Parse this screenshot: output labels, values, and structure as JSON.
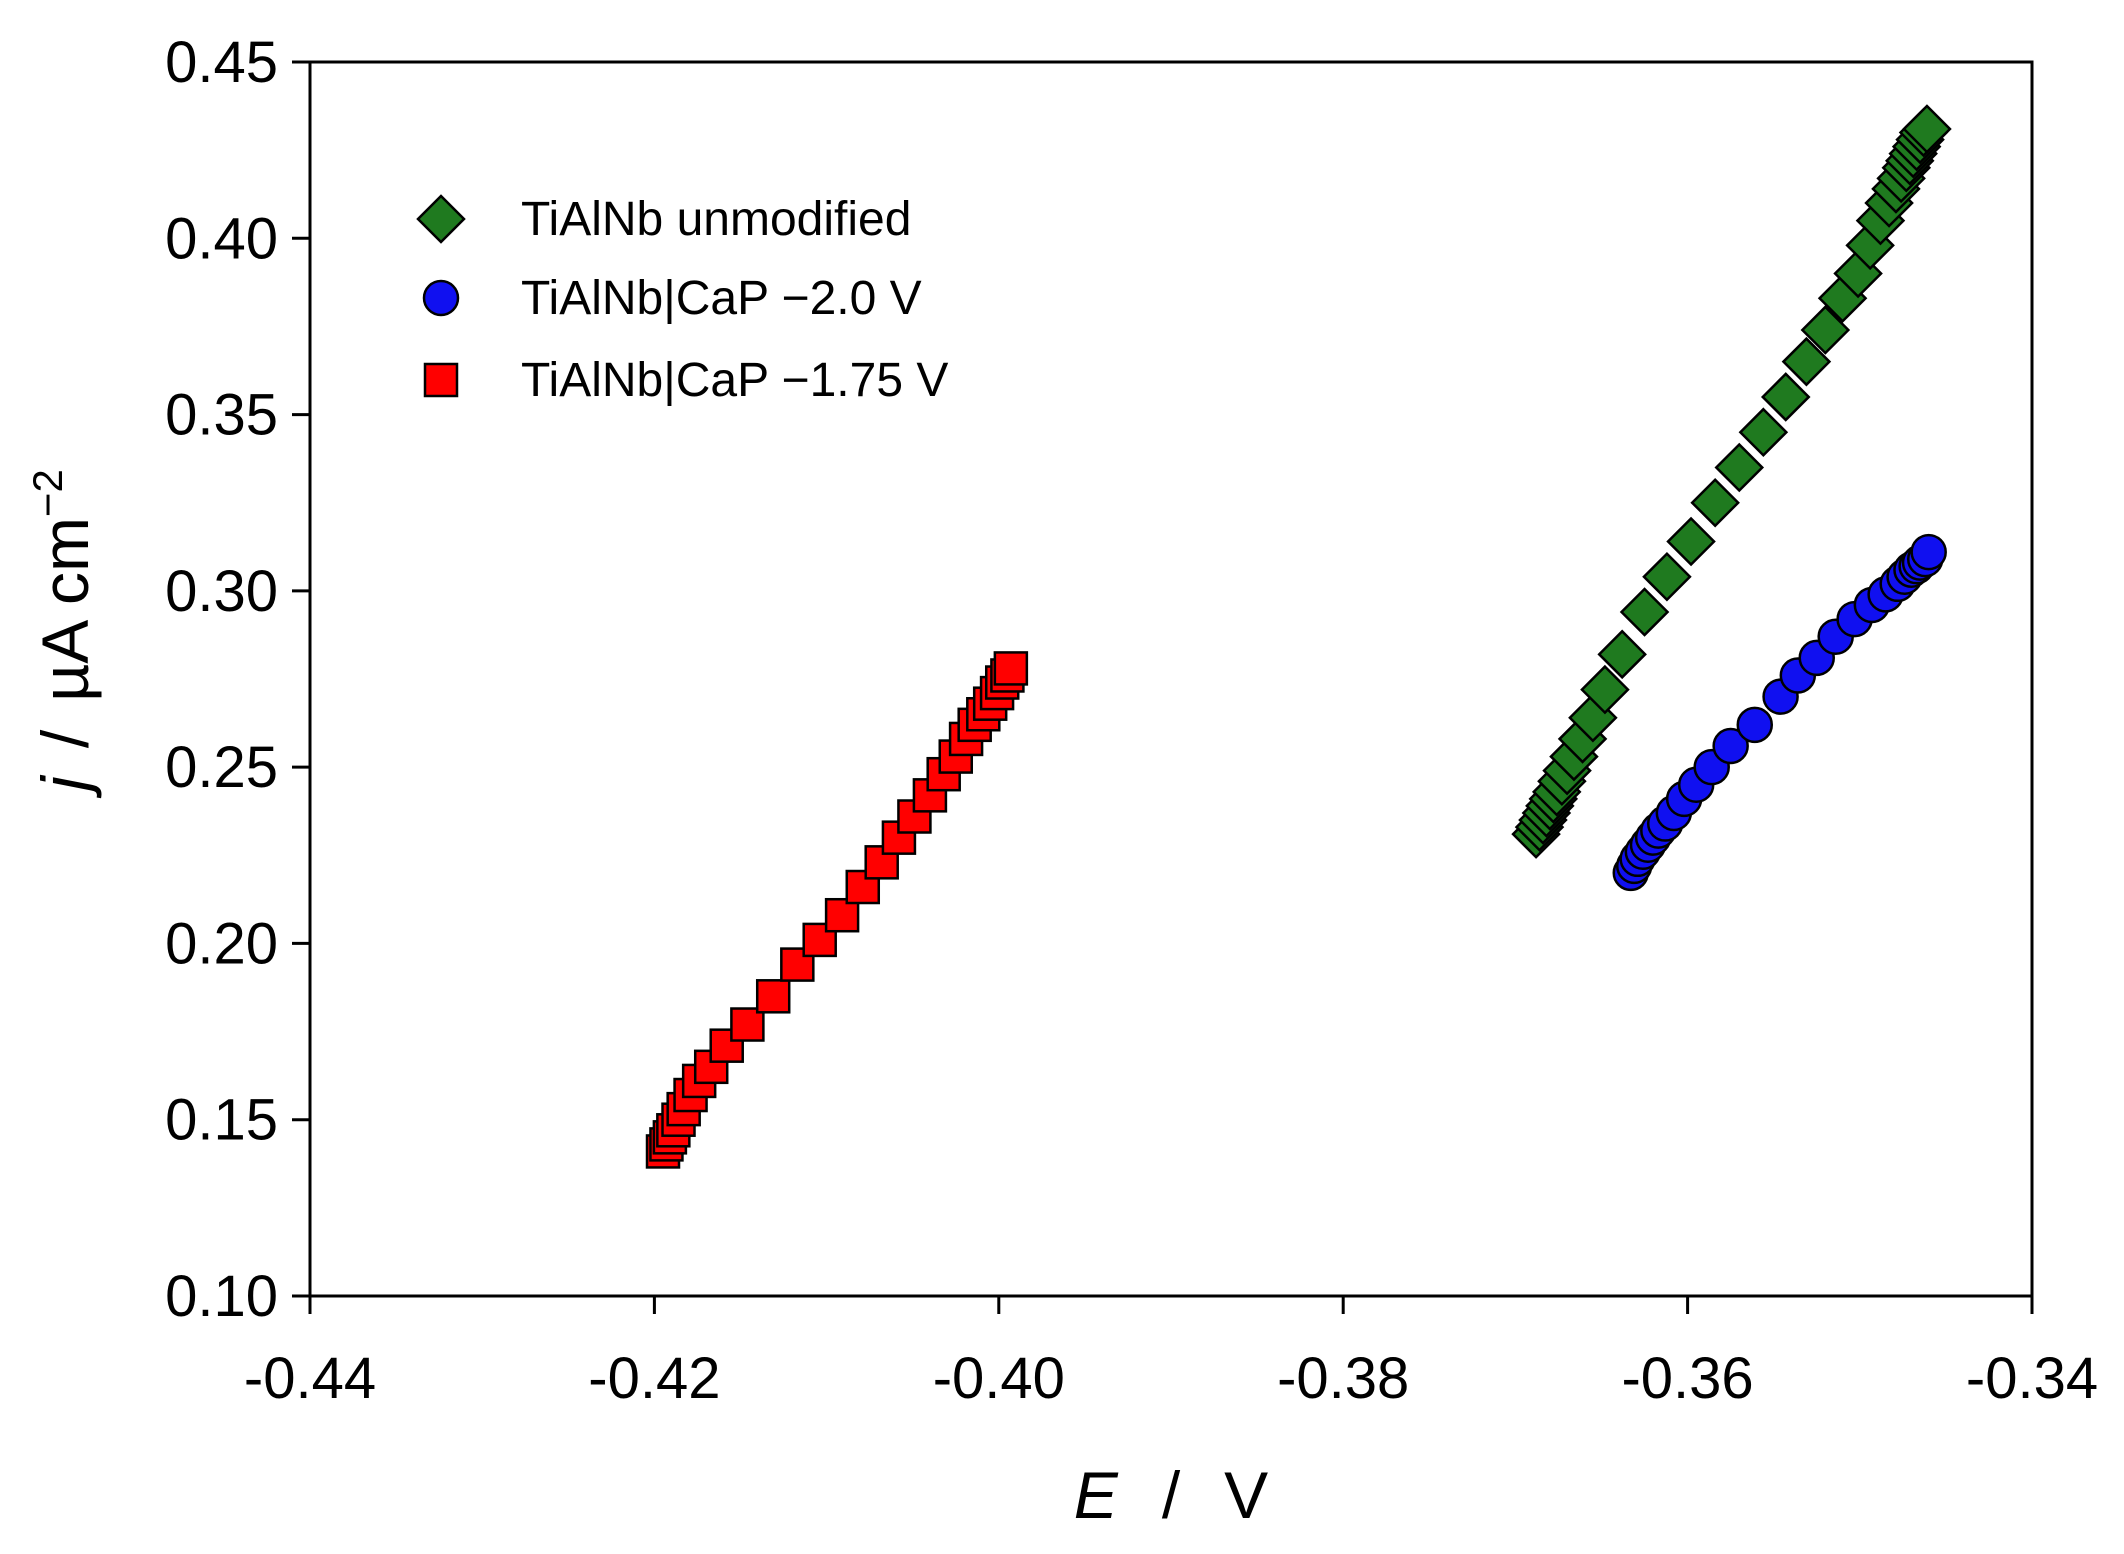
{
  "chart_data": {
    "type": "scatter",
    "title": "",
    "xlabel": {
      "symbol": "E",
      "separator": "/",
      "unit": "V"
    },
    "ylabel": {
      "symbol": "j",
      "separator": "/",
      "unit": "µA cm",
      "unit_exp": "−2"
    },
    "xlim": [
      -0.44,
      -0.34
    ],
    "ylim": [
      0.1,
      0.45
    ],
    "x_ticks": [
      -0.44,
      -0.42,
      -0.4,
      -0.38,
      -0.36,
      -0.34
    ],
    "x_tick_labels": [
      "-0.44",
      "-0.42",
      "-0.40",
      "-0.38",
      "-0.36",
      "-0.34"
    ],
    "y_ticks": [
      0.1,
      0.15,
      0.2,
      0.25,
      0.3,
      0.35,
      0.4,
      0.45
    ],
    "y_tick_labels": [
      "0.10",
      "0.15",
      "0.20",
      "0.25",
      "0.30",
      "0.35",
      "0.40",
      "0.45"
    ],
    "grid": false,
    "legend_position": "top-left",
    "series": [
      {
        "name": "TiAlNb unmodified",
        "marker": "diamond",
        "color": "#1f7a1f",
        "x": [
          -0.3688,
          -0.3686,
          -0.3684,
          -0.3682,
          -0.368,
          -0.3678,
          -0.3676,
          -0.3673,
          -0.367,
          -0.3666,
          -0.3661,
          -0.3655,
          -0.3648,
          -0.3638,
          -0.3625,
          -0.3612,
          -0.3598,
          -0.3584,
          -0.357,
          -0.3556,
          -0.3543,
          -0.3531,
          -0.352,
          -0.351,
          -0.3501,
          -0.3494,
          -0.3488,
          -0.3483,
          -0.3479,
          -0.3476,
          -0.3473,
          -0.3471,
          -0.3469,
          -0.3467,
          -0.3465,
          -0.3463,
          -0.3461
        ],
        "y": [
          0.231,
          0.233,
          0.235,
          0.237,
          0.239,
          0.241,
          0.243,
          0.246,
          0.249,
          0.253,
          0.258,
          0.264,
          0.272,
          0.282,
          0.294,
          0.304,
          0.314,
          0.325,
          0.335,
          0.345,
          0.355,
          0.365,
          0.374,
          0.383,
          0.39,
          0.398,
          0.405,
          0.41,
          0.414,
          0.417,
          0.42,
          0.422,
          0.424,
          0.426,
          0.428,
          0.43,
          0.431
        ]
      },
      {
        "name": "TiAlNb|CaP −2.0 V",
        "marker": "circle",
        "color": "#1010f0",
        "x": [
          -0.3633,
          -0.3631,
          -0.3629,
          -0.3626,
          -0.3623,
          -0.362,
          -0.3617,
          -0.3613,
          -0.3608,
          -0.3602,
          -0.3595,
          -0.3586,
          -0.3575,
          -0.3561,
          -0.3546,
          -0.3536,
          -0.3525,
          -0.3514,
          -0.3503,
          -0.3493,
          -0.3485,
          -0.3478,
          -0.3474,
          -0.347,
          -0.3467,
          -0.3465,
          -0.3462,
          -0.346
        ],
        "y": [
          0.22,
          0.222,
          0.224,
          0.226,
          0.228,
          0.23,
          0.232,
          0.234,
          0.237,
          0.241,
          0.245,
          0.25,
          0.256,
          0.262,
          0.27,
          0.276,
          0.281,
          0.287,
          0.292,
          0.296,
          0.299,
          0.302,
          0.304,
          0.306,
          0.307,
          0.308,
          0.309,
          0.311
        ]
      },
      {
        "name": "TiAlNb|CaP −1.75 V",
        "marker": "square",
        "color": "#ff0000",
        "x": [
          -0.4195,
          -0.4193,
          -0.4191,
          -0.4189,
          -0.4186,
          -0.4183,
          -0.4179,
          -0.4174,
          -0.4167,
          -0.4158,
          -0.4146,
          -0.4131,
          -0.4117,
          -0.4104,
          -0.4091,
          -0.4079,
          -0.4068,
          -0.4058,
          -0.4049,
          -0.404,
          -0.4032,
          -0.4025,
          -0.4019,
          -0.4014,
          -0.4009,
          -0.4005,
          -0.4001,
          -0.3998,
          -0.3995,
          -0.3993
        ],
        "y": [
          0.141,
          0.143,
          0.145,
          0.147,
          0.15,
          0.153,
          0.157,
          0.161,
          0.165,
          0.171,
          0.177,
          0.185,
          0.194,
          0.201,
          0.208,
          0.216,
          0.223,
          0.23,
          0.236,
          0.242,
          0.248,
          0.253,
          0.258,
          0.262,
          0.265,
          0.268,
          0.271,
          0.274,
          0.276,
          0.278
        ]
      }
    ]
  }
}
